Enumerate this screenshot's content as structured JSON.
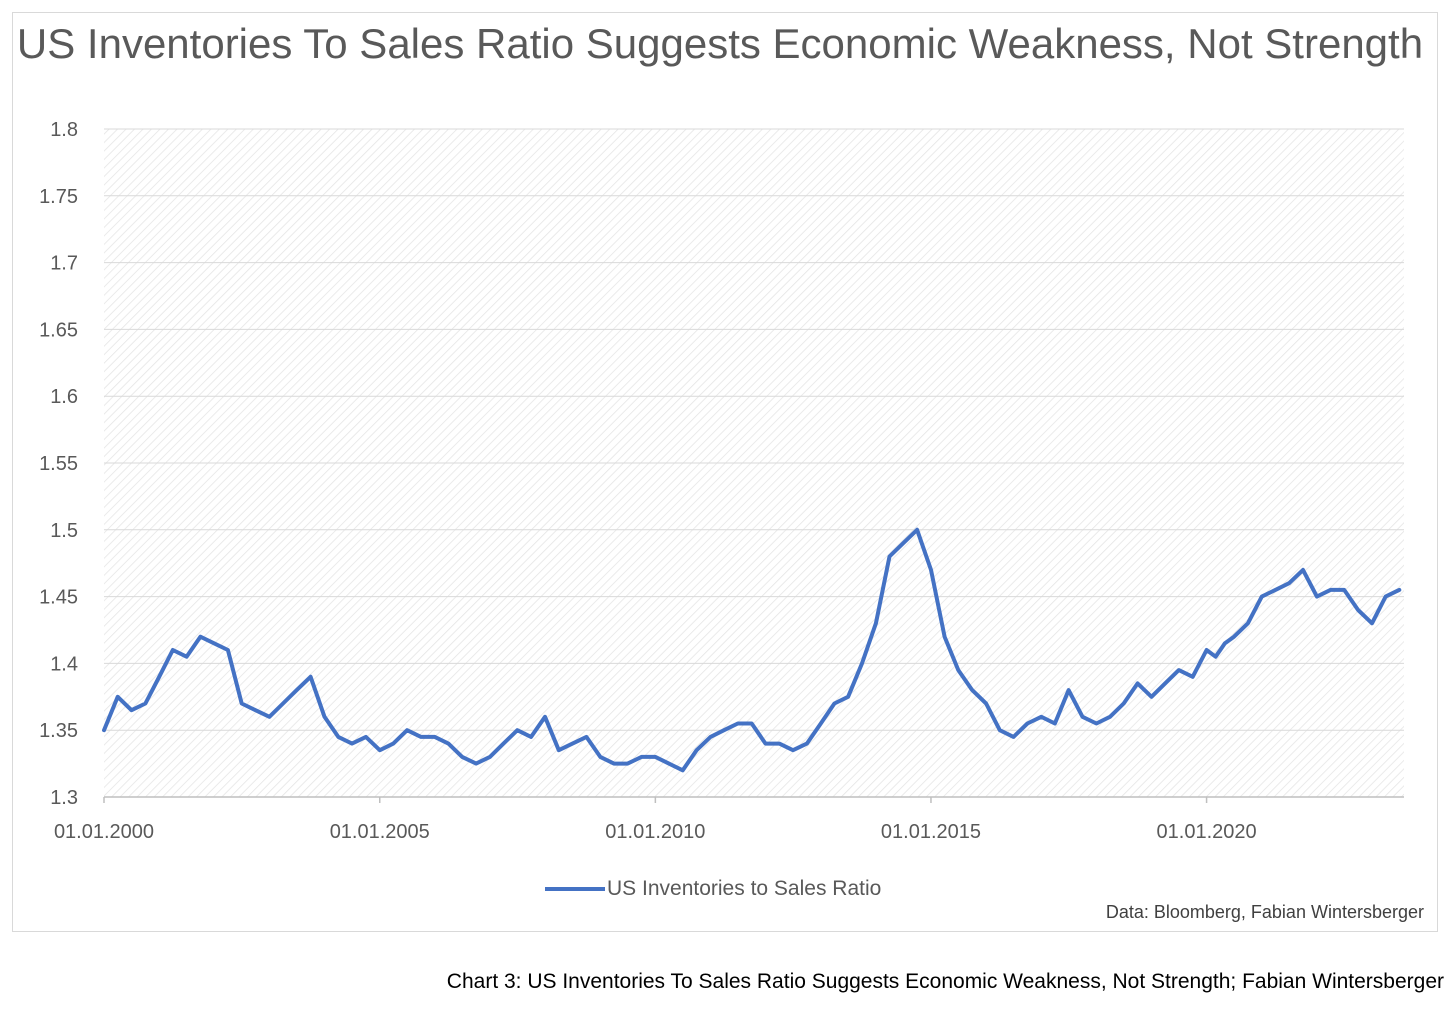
{
  "chart_data": {
    "type": "line",
    "title": "US Inventories To Sales Ratio Suggests Economic Weakness, Not Strength",
    "xlabel": "",
    "ylabel": "",
    "ylim": [
      1.3,
      1.8
    ],
    "xlim": [
      "2000-01-01",
      "2023-08-01"
    ],
    "y_ticks": [
      "1.3",
      "1.35",
      "1.4",
      "1.45",
      "1.5",
      "1.55",
      "1.6",
      "1.65",
      "1.7",
      "1.75",
      "1.8"
    ],
    "x_tick_dates": [
      "2000-01-01",
      "2005-01-01",
      "2010-01-01",
      "2015-01-01",
      "2020-01-01"
    ],
    "x_ticks": [
      "01.01.2000",
      "01.01.2005",
      "01.01.2010",
      "01.01.2015",
      "01.01.2020"
    ],
    "grid": "horizontal",
    "legend_position": "bottom",
    "series": [
      {
        "name": "US Inventories to Sales Ratio",
        "color": "#4472c4",
        "x": [
          "2000-01-01",
          "2000-04-01",
          "2000-07-01",
          "2000-10-01",
          "2001-01-01",
          "2001-04-01",
          "2001-07-01",
          "2001-10-01",
          "2002-01-01",
          "2002-04-01",
          "2002-07-01",
          "2002-10-01",
          "2003-01-01",
          "2003-04-01",
          "2003-07-01",
          "2003-10-01",
          "2004-01-01",
          "2004-04-01",
          "2004-07-01",
          "2004-10-01",
          "2005-01-01",
          "2005-04-01",
          "2005-07-01",
          "2005-10-01",
          "2006-01-01",
          "2006-04-01",
          "2006-07-01",
          "2006-10-01",
          "2007-01-01",
          "2007-04-01",
          "2007-07-01",
          "2007-10-01",
          "2008-01-01",
          "2008-04-01",
          "2008-07-01",
          "2008-10-01",
          "2009-01-01",
          "2009-04-01",
          "2009-07-01",
          "2009-10-01",
          "2010-01-01",
          "2010-04-01",
          "2010-07-01",
          "2010-10-01",
          "2011-01-01",
          "2011-04-01",
          "2011-07-01",
          "2011-10-01",
          "2012-01-01",
          "2012-04-01",
          "2012-07-01",
          "2012-10-01",
          "2013-01-01",
          "2013-04-01",
          "2013-07-01",
          "2013-10-01",
          "2014-01-01",
          "2014-04-01",
          "2014-07-01",
          "2014-10-01",
          "2015-01-01",
          "2015-04-01",
          "2015-07-01",
          "2015-10-01",
          "2016-01-01",
          "2016-04-01",
          "2016-07-01",
          "2016-10-01",
          "2017-01-01",
          "2017-04-01",
          "2017-07-01",
          "2017-10-01",
          "2018-01-01",
          "2018-04-01",
          "2018-07-01",
          "2018-10-01",
          "2019-01-01",
          "2019-04-01",
          "2019-07-01",
          "2019-10-01",
          "2020-01-01",
          "2020-03-01",
          "2020-04-01",
          "2020-05-01",
          "2020-07-01",
          "2020-10-01",
          "2021-01-01",
          "2021-04-01",
          "2021-07-01",
          "2021-10-01",
          "2022-01-01",
          "2022-04-01",
          "2022-07-01",
          "2022-10-01",
          "2023-01-01",
          "2023-04-01",
          "2023-07-01"
        ],
        "values": [
          1.35,
          1.375,
          1.365,
          1.37,
          1.39,
          1.41,
          1.405,
          1.42,
          1.415,
          1.41,
          1.37,
          1.365,
          1.36,
          1.37,
          1.38,
          1.39,
          1.36,
          1.345,
          1.34,
          1.345,
          1.335,
          1.34,
          1.35,
          1.345,
          1.345,
          1.34,
          1.33,
          1.325,
          1.33,
          1.34,
          1.35,
          1.345,
          1.36,
          1.335,
          1.34,
          1.345,
          1.33,
          1.325,
          1.325,
          1.33,
          1.33,
          1.325,
          1.32,
          1.335,
          1.345,
          1.35,
          1.355,
          1.355,
          1.34,
          1.34,
          1.335,
          1.34,
          1.355,
          1.37,
          1.375,
          1.4,
          1.43,
          1.48,
          1.49,
          1.5,
          1.47,
          1.42,
          1.395,
          1.38,
          1.37,
          1.35,
          1.345,
          1.355,
          1.36,
          1.355,
          1.38,
          1.36,
          1.355,
          1.36,
          1.37,
          1.385,
          1.375,
          1.385,
          1.395,
          1.39,
          1.41,
          1.405,
          1.41,
          1.415,
          1.42,
          1.43,
          1.45,
          1.455,
          1.46,
          1.47,
          1.45,
          1.455,
          1.455,
          1.44,
          1.43,
          1.45,
          1.455
        ],
        "values_note": ""
      }
    ],
    "source": "Data: Bloomberg, Fabian Wintersberger"
  },
  "caption": "Chart 3: US Inventories To Sales Ratio Suggests Economic Weakness, Not Strength; Fabian Wintersberger"
}
